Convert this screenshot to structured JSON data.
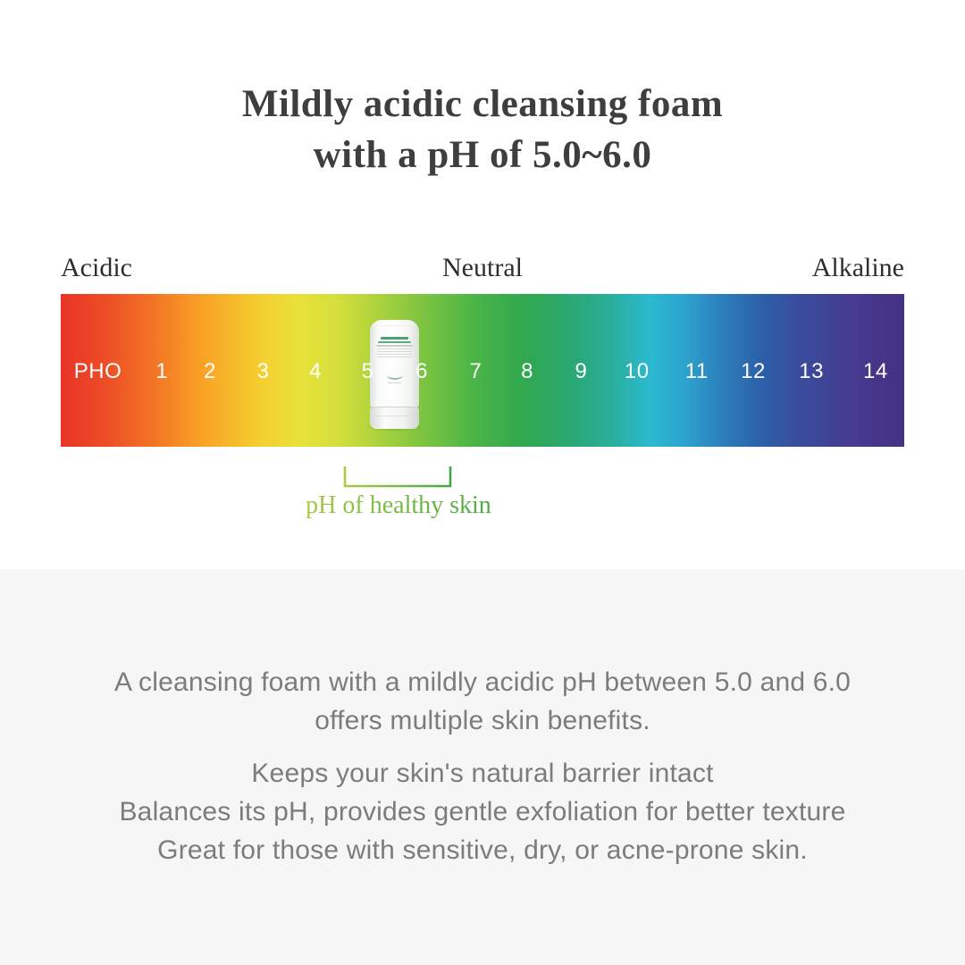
{
  "title": {
    "line1": "Mildly acidic cleansing foam",
    "line2": "with a pH of 5.0~6.0"
  },
  "ph_scale": {
    "zone_labels": [
      "Acidic",
      "Neutral",
      "Alkaline"
    ],
    "tick_labels": [
      "PHO",
      "1",
      "2",
      "3",
      "4",
      "5",
      "6",
      "7",
      "8",
      "9",
      "10",
      "11",
      "12",
      "13",
      "14"
    ],
    "bracket_label": "pH of healthy skin",
    "gradient_stops": [
      {
        "pos": 0,
        "color": "#e93428"
      },
      {
        "pos": 5,
        "color": "#ec4b27"
      },
      {
        "pos": 11,
        "color": "#f37426"
      },
      {
        "pos": 17,
        "color": "#f9a326"
      },
      {
        "pos": 23,
        "color": "#f5cb2e"
      },
      {
        "pos": 28,
        "color": "#ebe03a"
      },
      {
        "pos": 33,
        "color": "#d3df3b"
      },
      {
        "pos": 37,
        "color": "#b2d43c"
      },
      {
        "pos": 43,
        "color": "#7cc441"
      },
      {
        "pos": 49,
        "color": "#4bb447"
      },
      {
        "pos": 55,
        "color": "#2fa84e"
      },
      {
        "pos": 61,
        "color": "#2aa876"
      },
      {
        "pos": 66,
        "color": "#29b0a4"
      },
      {
        "pos": 70,
        "color": "#2bb9d0"
      },
      {
        "pos": 74,
        "color": "#2da3cd"
      },
      {
        "pos": 78,
        "color": "#2c82bd"
      },
      {
        "pos": 83,
        "color": "#2c60a9"
      },
      {
        "pos": 88,
        "color": "#3a4b9b"
      },
      {
        "pos": 94,
        "color": "#473a8f"
      },
      {
        "pos": 100,
        "color": "#443184"
      }
    ]
  },
  "description": {
    "paragraph1": [
      "A cleansing foam with a mildly acidic pH between 5.0 and 6.0",
      "offers multiple skin benefits."
    ],
    "paragraph2": [
      "Keeps your skin's natural barrier intact",
      "Balances its pH, provides gentle exfoliation for better texture",
      "Great for those with sensitive, dry, or acne-prone skin."
    ]
  },
  "colors": {
    "title_text": "#3e3e3e",
    "zone_label_text": "#2e2e2e",
    "body_text": "#7c7c7c",
    "tick_text": "#ffffff",
    "bottom_section_bg": "#f6f6f6",
    "bracket_green_start": "#aecb45",
    "bracket_green_end": "#44a746"
  }
}
